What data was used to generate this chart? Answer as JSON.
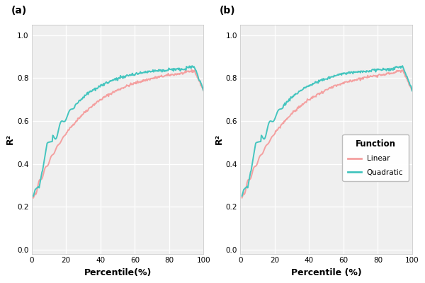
{
  "title_a": "(a)",
  "title_b": "(b)",
  "xlabel_a": "Percentile(%)",
  "xlabel_b": "Percentile (%)",
  "ylabel": "R²",
  "ylim": [
    -0.02,
    1.05
  ],
  "yticks": [
    0.0,
    0.2,
    0.4,
    0.6,
    0.8,
    1.0
  ],
  "xlim": [
    0,
    100
  ],
  "xticks": [
    0,
    20,
    40,
    60,
    80,
    100
  ],
  "linear_color": "#F4A0A0",
  "quadratic_color": "#45C5BF",
  "bg_color": "#EFEFEF",
  "grid_color": "#FFFFFF",
  "legend_title": "Function",
  "legend_linear": "Linear",
  "legend_quadratic": "Quadratic",
  "linewidth": 1.4
}
